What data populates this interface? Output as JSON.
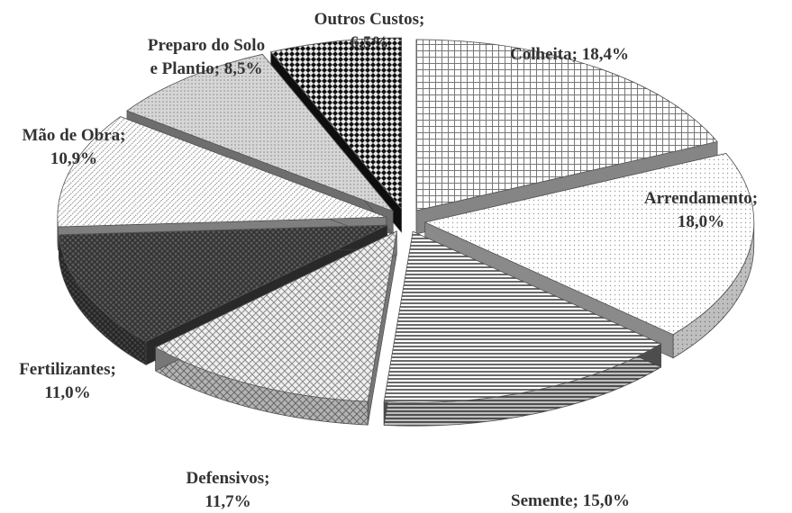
{
  "chart_data": {
    "type": "pie",
    "style": "3d-exploded",
    "title": "",
    "slices": [
      {
        "label_lines": [
          "Colheita; 18,4%"
        ],
        "category": "Colheita",
        "value": 18.4
      },
      {
        "label_lines": [
          "Arrendamento;",
          "18,0%"
        ],
        "category": "Arrendamento",
        "value": 18.0
      },
      {
        "label_lines": [
          "Semente; 15,0%"
        ],
        "category": "Semente",
        "value": 15.0
      },
      {
        "label_lines": [
          "Defensivos;",
          "11,7%"
        ],
        "category": "Defensivos",
        "value": 11.7
      },
      {
        "label_lines": [
          "Fertilizantes;",
          "11,0%"
        ],
        "category": "Fertilizantes",
        "value": 11.0
      },
      {
        "label_lines": [
          "Mão de Obra;",
          "10,9%"
        ],
        "category": "Mão de Obra",
        "value": 10.9
      },
      {
        "label_lines": [
          "Preparo do Solo",
          "e Plantio; 8,5%"
        ],
        "category": "Preparo do Solo e Plantio",
        "value": 8.5
      },
      {
        "label_lines": [
          "Outros Custos;",
          "6,5%"
        ],
        "category": "Outros Custos",
        "value": 6.5
      }
    ],
    "legend": "none",
    "colors": [
      "#f2f2f2",
      "#fafafa",
      "#8c8c8c",
      "#d9d9d9",
      "#4a4a4a",
      "#e6e6e6",
      "#c8c8c8",
      "#1a1a1a"
    ]
  }
}
